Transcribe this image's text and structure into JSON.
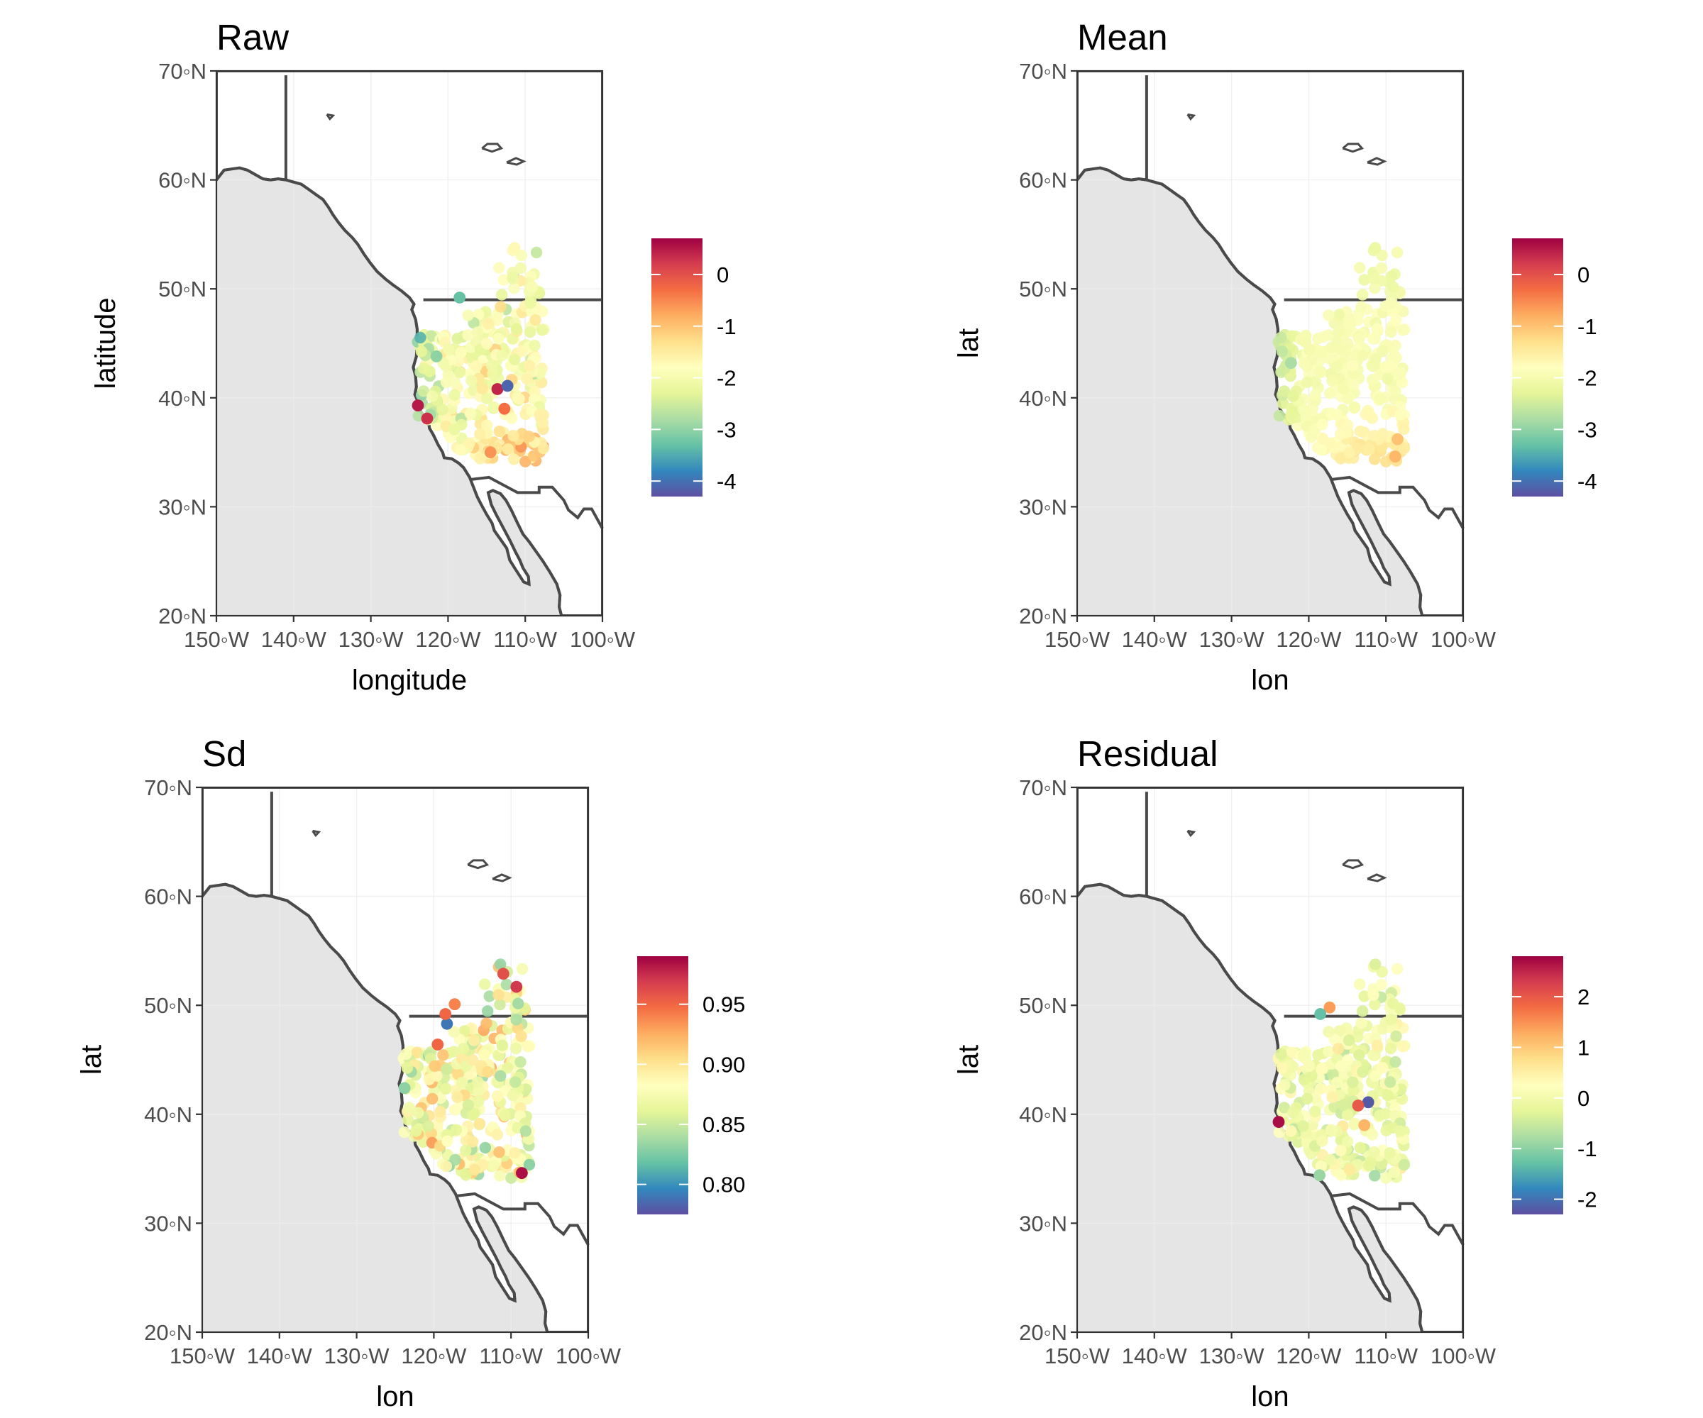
{
  "panels": [
    {
      "title": "Raw",
      "xlabel": "longitude",
      "ylabel": "latitude",
      "legend": {
        "min": -4.3,
        "max": 0.7,
        "ticks": [
          0,
          -1,
          -2,
          -3,
          -4
        ],
        "tick_labels": [
          "0",
          "-1",
          "-2",
          "-3",
          "-4"
        ]
      },
      "field": {
        "base": -1.9,
        "south": 0.8,
        "northeast": -0.2,
        "coast": -0.9,
        "noise": 0.55
      },
      "outliers": [
        {
          "lon": -123.9,
          "lat": 39.3,
          "value": 0.5
        },
        {
          "lon": -113.6,
          "lat": 40.8,
          "value": 0.4
        },
        {
          "lon": -112.3,
          "lat": 41.1,
          "value": -4.1
        },
        {
          "lon": -118.5,
          "lat": 49.2,
          "value": -3.3
        },
        {
          "lon": -122.7,
          "lat": 38.1,
          "value": 0.3
        },
        {
          "lon": -112.7,
          "lat": 39.0,
          "value": -0.3
        },
        {
          "lon": -114.5,
          "lat": 35.0,
          "value": -0.6
        },
        {
          "lon": -121.5,
          "lat": 43.8,
          "value": -3.0
        }
      ]
    },
    {
      "title": "Mean",
      "xlabel": "lon",
      "ylabel": "lat",
      "legend": {
        "min": -4.3,
        "max": 0.7,
        "ticks": [
          0,
          -1,
          -2,
          -3,
          -4
        ],
        "tick_labels": [
          "0",
          "-1",
          "-2",
          "-3",
          "-4"
        ]
      },
      "field": {
        "base": -1.95,
        "south": 0.65,
        "northeast": -0.15,
        "coast": -0.75,
        "noise": 0.12
      },
      "outliers": [
        {
          "lon": -108.5,
          "lat": 36.2,
          "value": -1.0
        },
        {
          "lon": -108.8,
          "lat": 34.6,
          "value": -0.9
        },
        {
          "lon": -122.3,
          "lat": 43.2,
          "value": -2.8
        }
      ]
    },
    {
      "title": "Sd",
      "xlabel": "lon",
      "ylabel": "lat",
      "legend": {
        "min": 0.775,
        "max": 0.99,
        "ticks": [
          0.95,
          0.9,
          0.85,
          0.8
        ],
        "tick_labels": [
          "0.95",
          "0.90",
          "0.85",
          "0.80"
        ]
      },
      "field": {
        "base": 0.875,
        "south": 0.0,
        "northeast": 0.0,
        "coast": 0.0,
        "noise": 0.032
      },
      "outliers": [
        {
          "lon": -108.6,
          "lat": 34.6,
          "value": 0.985
        },
        {
          "lon": -118.3,
          "lat": 48.3,
          "value": 0.79
        },
        {
          "lon": -118.5,
          "lat": 49.2,
          "value": 0.95
        },
        {
          "lon": -117.3,
          "lat": 50.1,
          "value": 0.94
        },
        {
          "lon": -111.0,
          "lat": 52.9,
          "value": 0.96
        },
        {
          "lon": -109.3,
          "lat": 51.7,
          "value": 0.97
        },
        {
          "lon": -119.5,
          "lat": 46.4,
          "value": 0.95
        },
        {
          "lon": -123.8,
          "lat": 42.4,
          "value": 0.83
        }
      ]
    },
    {
      "title": "Residual",
      "xlabel": "lon",
      "ylabel": "lat",
      "legend": {
        "min": -2.3,
        "max": 2.8,
        "ticks": [
          2,
          1,
          0,
          -1,
          -2
        ],
        "tick_labels": [
          "2",
          "1",
          "0",
          "-1",
          "-2"
        ]
      },
      "field": {
        "base": -0.05,
        "south": 0.0,
        "northeast": 0.0,
        "coast": 0.0,
        "noise": 0.45
      },
      "outliers": [
        {
          "lon": -123.9,
          "lat": 39.3,
          "value": 2.7
        },
        {
          "lon": -112.3,
          "lat": 41.1,
          "value": -2.2
        },
        {
          "lon": -113.6,
          "lat": 40.8,
          "value": 2.0
        },
        {
          "lon": -117.3,
          "lat": 49.8,
          "value": 1.4
        },
        {
          "lon": -118.5,
          "lat": 49.2,
          "value": -1.3
        },
        {
          "lon": -112.8,
          "lat": 39.0,
          "value": 1.2
        },
        {
          "lon": -118.6,
          "lat": 34.4,
          "value": -0.9
        }
      ]
    }
  ],
  "axes": {
    "lon_range": [
      -150,
      -100
    ],
    "lat_range": [
      20,
      70
    ],
    "x_tick_labels": [
      "150◦W",
      "140◦W",
      "130◦W",
      "120◦W",
      "110◦W",
      "100◦W"
    ],
    "y_tick_labels": [
      "20◦N",
      "30◦N",
      "40◦N",
      "50◦N",
      "60◦N",
      "70◦N"
    ]
  },
  "colors": {
    "ocean": "#ffffff",
    "land": "#e5e5e5",
    "outline": "#4a4a4a",
    "palette": [
      "#5e4fa2",
      "#3288bd",
      "#66c2a5",
      "#abdda4",
      "#e6f598",
      "#ffffbf",
      "#fee08b",
      "#fdae61",
      "#f46d43",
      "#d53e4f",
      "#9e0142"
    ]
  }
}
